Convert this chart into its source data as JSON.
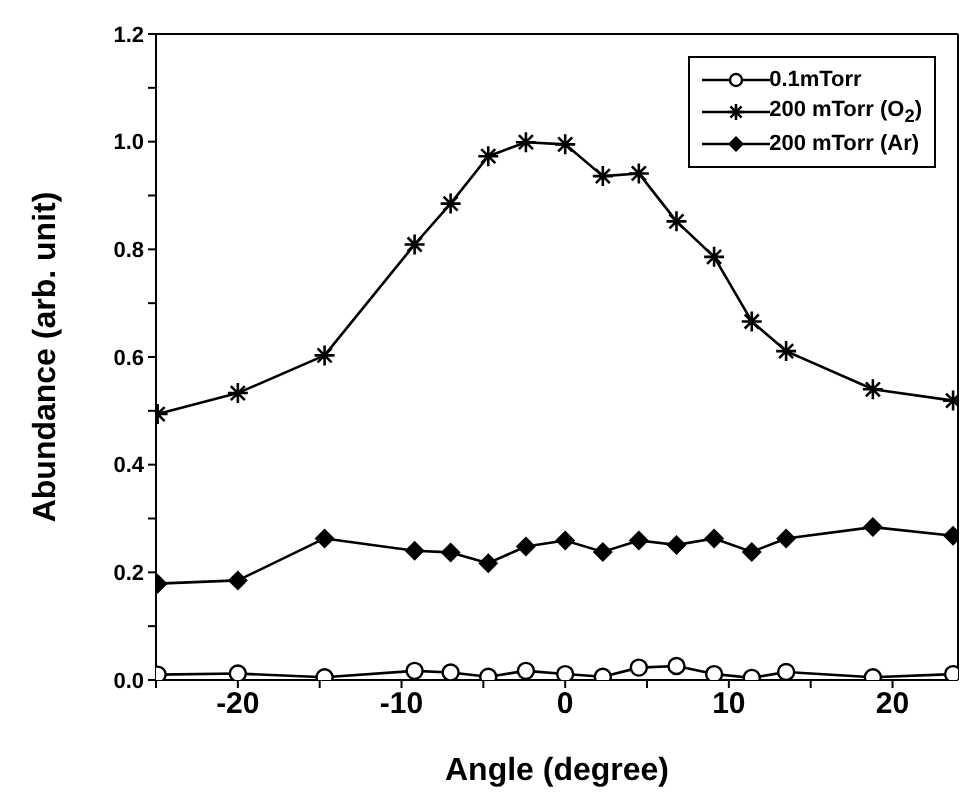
{
  "chart_data": {
    "type": "line",
    "xlabel": "Angle (degree)",
    "ylabel": "Abundance (arb. unit)",
    "xlim": [
      -25,
      24
    ],
    "xticks": [
      {
        "value": -25,
        "label": null
      },
      -20,
      {
        "value": -15,
        "label": null
      },
      -10,
      {
        "value": -5,
        "label": null
      },
      0,
      {
        "value": 5,
        "label": null
      },
      10,
      {
        "value": 15,
        "label": null
      },
      20
    ],
    "ylim": [
      0,
      1.2
    ],
    "yticks": [
      {
        "value": 0,
        "label": "0.0"
      },
      {
        "value": 0.1,
        "label": null
      },
      0.2,
      {
        "value": 0.3,
        "label": null
      },
      0.4,
      {
        "value": 0.5,
        "label": null
      },
      0.6,
      {
        "value": 0.7,
        "label": null
      },
      0.8,
      {
        "value": 0.9,
        "label": null
      },
      {
        "value": 1,
        "label": "1.0"
      },
      {
        "value": 1.1,
        "label": null
      },
      1.2
    ],
    "x": [
      -24.9,
      -20,
      -14.7,
      -9.2,
      -7,
      -4.7,
      -2.4,
      0,
      2.3,
      4.5,
      6.8,
      9.1,
      11.4,
      13.5,
      18.8,
      23.7
    ],
    "grid": false,
    "legend": "top right",
    "line_style": "solid",
    "series": [
      {
        "name": "0.1mTorr",
        "color": "#000000",
        "marker": "circle",
        "values": [
          0.01,
          0.012,
          0.005,
          0.017,
          0.014,
          0.006,
          0.017,
          0.011,
          0.006,
          0.023,
          0.026,
          0.011,
          0.004,
          0.015,
          0.005,
          0.011
        ]
      },
      {
        "name": "200 mTorr (O$_{2}$)",
        "color": "#000000",
        "marker": "cross",
        "values": [
          0.494,
          0.533,
          0.603,
          0.809,
          0.885,
          0.973,
          0.999,
          0.995,
          0.936,
          0.941,
          0.852,
          0.786,
          0.666,
          0.611,
          0.54,
          0.519
        ]
      },
      {
        "name": "200 mTorr (Ar)",
        "color": "#000000",
        "marker": "diamond",
        "values": [
          0.179,
          0.185,
          0.263,
          0.24,
          0.237,
          0.217,
          0.248,
          0.259,
          0.238,
          0.259,
          0.251,
          0.263,
          0.238,
          0.263,
          0.284,
          0.268
        ]
      }
    ]
  }
}
